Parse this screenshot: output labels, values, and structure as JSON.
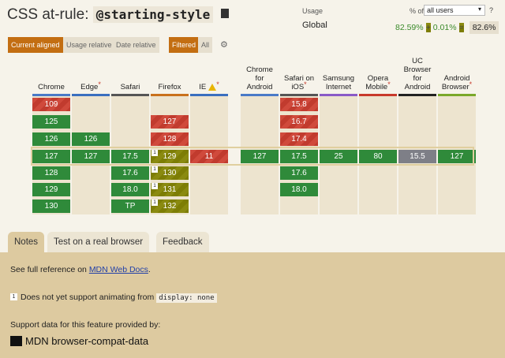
{
  "title": {
    "prefix": "CSS at-rule:",
    "code": "@starting-style"
  },
  "usage": {
    "label": "Usage",
    "pct_of": "% of",
    "select_value": "all users",
    "help": "?",
    "region": "Global",
    "supported": "82.59%",
    "plus": "+",
    "partial": "0.01%",
    "equals": "=",
    "total": "82.6%"
  },
  "controls": {
    "current_aligned": "Current aligned",
    "usage_relative": "Usage relative",
    "date_relative": "Date relative",
    "filtered": "Filtered",
    "all": "All"
  },
  "browsers": [
    {
      "name": "Chrome",
      "star": false,
      "bar": "#4a7ac7",
      "cells": [
        {
          "v": "109",
          "s": "n",
          "r": 0
        },
        {
          "v": "125",
          "s": "y",
          "r": 1
        },
        {
          "v": "126",
          "s": "y",
          "r": 2
        },
        {
          "v": "127",
          "s": "y",
          "r": 3
        },
        {
          "v": "128",
          "s": "y",
          "r": 4
        },
        {
          "v": "129",
          "s": "y",
          "r": 5
        },
        {
          "v": "130",
          "s": "y",
          "r": 6
        }
      ]
    },
    {
      "name": "Edge",
      "star": true,
      "bar": "#3a6fbf",
      "cells": [
        {
          "v": "126",
          "s": "y",
          "r": 2
        },
        {
          "v": "127",
          "s": "y",
          "r": 3
        }
      ]
    },
    {
      "name": "Safari",
      "star": false,
      "bar": "#555555",
      "cells": [
        {
          "v": "17.5",
          "s": "y",
          "r": 3
        },
        {
          "v": "17.6",
          "s": "y",
          "r": 4
        },
        {
          "v": "18.0",
          "s": "y",
          "r": 5
        },
        {
          "v": "TP",
          "s": "y",
          "r": 6
        }
      ]
    },
    {
      "name": "Firefox",
      "star": false,
      "bar": "#c9711c",
      "cells": [
        {
          "v": "127",
          "s": "n",
          "r": 1
        },
        {
          "v": "128",
          "s": "n",
          "r": 2
        },
        {
          "v": "129",
          "s": "p",
          "r": 3,
          "note": "1"
        },
        {
          "v": "130",
          "s": "p",
          "r": 4,
          "note": "1"
        },
        {
          "v": "131",
          "s": "p",
          "r": 5,
          "note": "1"
        },
        {
          "v": "132",
          "s": "p",
          "r": 6,
          "note": "1"
        }
      ]
    },
    {
      "name": "IE",
      "star": true,
      "warn": true,
      "bar": "#3a6fbf",
      "cells": [
        {
          "v": "11",
          "s": "n",
          "r": 3
        }
      ]
    },
    {
      "name": "Chrome for Android",
      "star": false,
      "bar": "#4a7ac7",
      "cells": [
        {
          "v": "127",
          "s": "y",
          "r": 3
        }
      ]
    },
    {
      "name": "Safari on iOS",
      "star": true,
      "bar": "#555555",
      "cells": [
        {
          "v": "15.8",
          "s": "n",
          "r": 0
        },
        {
          "v": "16.7",
          "s": "n",
          "r": 1
        },
        {
          "v": "17.4",
          "s": "n",
          "r": 2
        },
        {
          "v": "17.5",
          "s": "y",
          "r": 3
        },
        {
          "v": "17.6",
          "s": "y",
          "r": 4
        },
        {
          "v": "18.0",
          "s": "y",
          "r": 5
        }
      ]
    },
    {
      "name": "Samsung Internet",
      "star": false,
      "bar": "#8a5ac7",
      "cells": [
        {
          "v": "25",
          "s": "y",
          "r": 3
        }
      ]
    },
    {
      "name": "Opera Mobile",
      "star": true,
      "bar": "#c8392b",
      "cells": [
        {
          "v": "80",
          "s": "y",
          "r": 3
        }
      ]
    },
    {
      "name": "UC Browser for Android",
      "star": false,
      "bar": "#222222",
      "cells": [
        {
          "v": "15.5",
          "s": "u",
          "r": 3
        }
      ]
    },
    {
      "name": "Android Browser",
      "star": true,
      "bar": "#7aa82a",
      "cells": [
        {
          "v": "127",
          "s": "y",
          "r": 3
        }
      ]
    }
  ],
  "tabs": [
    "Notes",
    "Test on a real browser",
    "Feedback"
  ],
  "notes": {
    "ref_prefix": "See full reference on ",
    "ref_link": "MDN Web Docs",
    "ref_suffix": ".",
    "note_num": "1",
    "note_text": "Does not yet support animating from",
    "note_code": "display: none",
    "support_text": "Support data for this feature provided by:",
    "mdn_label": "MDN browser-compat-data"
  }
}
